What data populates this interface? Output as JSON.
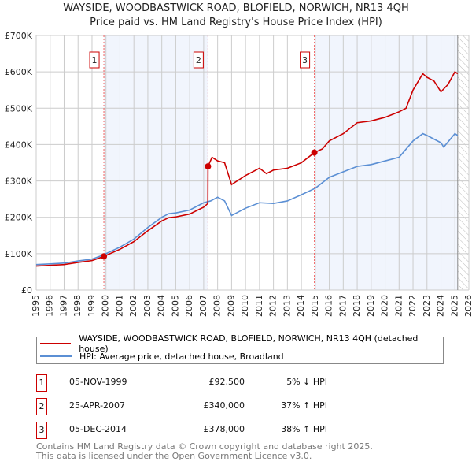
{
  "chart_data": {
    "type": "line",
    "title": "WAYSIDE, WOODBASTWICK ROAD, BLOFIELD, NORWICH, NR13 4QH",
    "subtitle": "Price paid vs. HM Land Registry's House Price Index (HPI)",
    "xlim": [
      1995,
      2026
    ],
    "ylim": [
      0,
      700000
    ],
    "x_ticks": [
      "1995",
      "1996",
      "1997",
      "1998",
      "1999",
      "2000",
      "2001",
      "2002",
      "2003",
      "2004",
      "2005",
      "2006",
      "2007",
      "2008",
      "2009",
      "2010",
      "2011",
      "2012",
      "2013",
      "2014",
      "2015",
      "2016",
      "2017",
      "2018",
      "2019",
      "2020",
      "2021",
      "2022",
      "2023",
      "2024",
      "2025",
      "2026"
    ],
    "y_ticks": [
      {
        "v": 0,
        "label": "£0"
      },
      {
        "v": 100000,
        "label": "£100K"
      },
      {
        "v": 200000,
        "label": "£200K"
      },
      {
        "v": 300000,
        "label": "£300K"
      },
      {
        "v": 400000,
        "label": "£400K"
      },
      {
        "v": 500000,
        "label": "£500K"
      },
      {
        "v": 600000,
        "label": "£600K"
      },
      {
        "v": 700000,
        "label": "£700K"
      }
    ],
    "grid": true,
    "series": [
      {
        "name": "WAYSIDE, WOODBASTWICK ROAD, BLOFIELD, NORWICH, NR13 4QH (detached house)",
        "color": "#cc0000",
        "x": [
          1995,
          1996,
          1997,
          1998,
          1999,
          1999.85,
          2000,
          2001,
          2002,
          2003,
          2004,
          2004.5,
          2005,
          2006,
          2007,
          2007.3,
          2007.31,
          2007.6,
          2008,
          2008.5,
          2009,
          2010,
          2011,
          2011.5,
          2012,
          2013,
          2014,
          2014.93,
          2015.5,
          2016,
          2017,
          2018,
          2019,
          2020,
          2021,
          2021.5,
          2022,
          2022.7,
          2023,
          2023.5,
          2024,
          2024.5,
          2025,
          2025.2
        ],
        "y": [
          66000,
          68000,
          70000,
          76000,
          81000,
          92500,
          95000,
          112000,
          133000,
          163000,
          190000,
          199000,
          201000,
          209000,
          228000,
          238000,
          340000,
          365000,
          355000,
          350000,
          290000,
          315000,
          335000,
          320000,
          330000,
          335000,
          350000,
          378000,
          388000,
          410000,
          430000,
          460000,
          465000,
          475000,
          490000,
          500000,
          550000,
          595000,
          585000,
          575000,
          545000,
          565000,
          600000,
          595000
        ]
      },
      {
        "name": "HPI: Average price, detached house, Broadland",
        "color": "#5b8fd4",
        "x": [
          1995,
          1996,
          1997,
          1998,
          1999,
          1999.85,
          2000,
          2001,
          2002,
          2003,
          2004,
          2004.5,
          2005,
          2006,
          2007,
          2007.5,
          2008,
          2008.5,
          2009,
          2010,
          2011,
          2012,
          2013,
          2014,
          2015,
          2016,
          2017,
          2018,
          2019,
          2020,
          2021,
          2022,
          2022.7,
          2023,
          2024,
          2024.2,
          2025,
          2025.2
        ],
        "y": [
          70000,
          72000,
          74000,
          80000,
          85000,
          97000,
          100000,
          118000,
          140000,
          172000,
          200000,
          210000,
          212000,
          220000,
          240000,
          245000,
          255000,
          245000,
          205000,
          225000,
          240000,
          238000,
          245000,
          262000,
          280000,
          310000,
          325000,
          340000,
          345000,
          355000,
          365000,
          410000,
          430000,
          425000,
          405000,
          393000,
          430000,
          425000
        ]
      }
    ],
    "sales": [
      {
        "id": "1",
        "x": 1999.85,
        "price": 92500
      },
      {
        "id": "2",
        "x": 2007.31,
        "price": 340000
      },
      {
        "id": "3",
        "x": 2014.93,
        "price": 378000
      }
    ],
    "shaded_ranges": [
      [
        1999.85,
        2007.31
      ],
      [
        2014.93,
        2025.2
      ]
    ],
    "forecast_hatch_from": 2025.2
  },
  "legend": {
    "red": "WAYSIDE, WOODBASTWICK ROAD, BLOFIELD, NORWICH, NR13 4QH (detached house)",
    "blue": "HPI: Average price, detached house, Broadland"
  },
  "table": [
    {
      "id": "1",
      "date": "05-NOV-1999",
      "price": "£92,500",
      "hpi": "5% ↓ HPI"
    },
    {
      "id": "2",
      "date": "25-APR-2007",
      "price": "£340,000",
      "hpi": "37% ↑ HPI"
    },
    {
      "id": "3",
      "date": "05-DEC-2014",
      "price": "£378,000",
      "hpi": "38% ↑ HPI"
    }
  ],
  "footer": {
    "line1": "Contains HM Land Registry data © Crown copyright and database right 2025.",
    "line2": "This data is licensed under the Open Government Licence v3.0."
  }
}
